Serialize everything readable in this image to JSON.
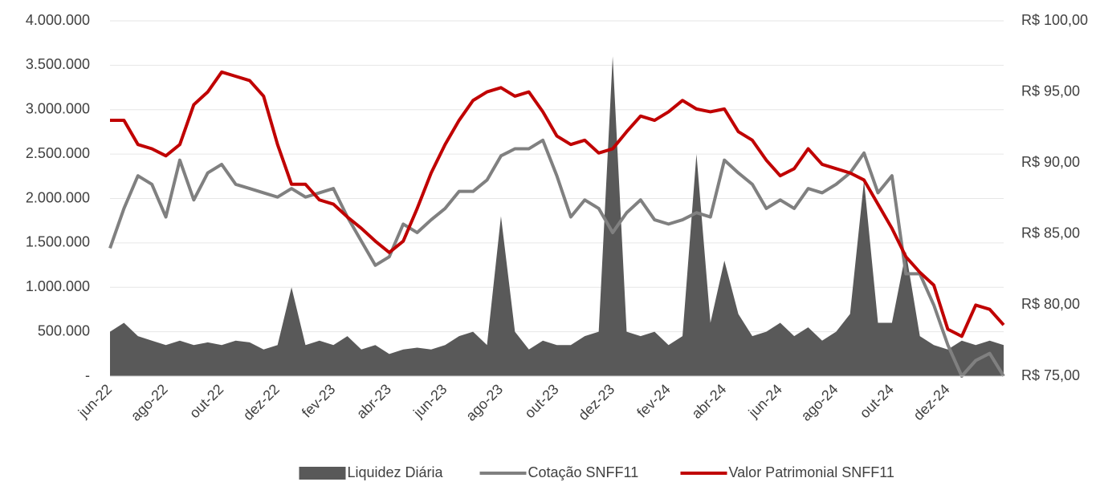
{
  "chart_data": {
    "type": "line",
    "categories": [
      "jun-22",
      null,
      null,
      null,
      "ago-22",
      null,
      null,
      null,
      "out-22",
      null,
      null,
      null,
      "dez-22",
      null,
      null,
      null,
      "fev-23",
      null,
      null,
      null,
      "abr-23",
      null,
      null,
      null,
      "jun-23",
      null,
      null,
      null,
      "ago-23",
      null,
      null,
      null,
      "out-23",
      null,
      null,
      null,
      "dez-23",
      null,
      null,
      null,
      "fev-24",
      null,
      null,
      null,
      "abr-24",
      null,
      null,
      null,
      "jun-24",
      null,
      null,
      null,
      "ago-24",
      null,
      null,
      null,
      "out-24",
      null,
      null,
      null,
      "dez-24",
      null,
      null,
      null,
      null
    ],
    "series": [
      {
        "name": "Liquidez Diária",
        "type": "area",
        "color": "#595959",
        "values": [
          500000,
          600000,
          450000,
          400000,
          350000,
          400000,
          350000,
          380000,
          350000,
          400000,
          380000,
          300000,
          350000,
          1000000,
          350000,
          400000,
          350000,
          450000,
          300000,
          350000,
          250000,
          300000,
          320000,
          300000,
          350000,
          450000,
          500000,
          350000,
          1800000,
          500000,
          300000,
          400000,
          350000,
          350000,
          450000,
          500000,
          3600000,
          500000,
          450000,
          500000,
          350000,
          450000,
          2500000,
          600000,
          1300000,
          700000,
          450000,
          500000,
          600000,
          450000,
          550000,
          400000,
          500000,
          700000,
          2200000,
          600000,
          600000,
          1400000,
          450000,
          350000,
          300000,
          400000,
          350000,
          400000,
          350000
        ]
      },
      {
        "name": "Cotação SNFF11",
        "color": "#808080",
        "axis": "y2",
        "values": [
          84.0,
          86.8,
          89.1,
          88.5,
          86.2,
          90.2,
          87.4,
          89.3,
          89.9,
          88.5,
          88.2,
          87.9,
          87.6,
          88.2,
          87.6,
          87.9,
          88.2,
          86.2,
          84.5,
          82.8,
          83.4,
          85.7,
          85.1,
          86.0,
          86.8,
          88.0,
          88.0,
          88.8,
          90.5,
          91.0,
          91.0,
          91.6,
          89.1,
          86.2,
          87.4,
          86.8,
          85.1,
          86.5,
          87.4,
          86.0,
          85.7,
          86.0,
          86.5,
          86.2,
          90.2,
          89.3,
          88.5,
          86.8,
          87.4,
          86.8,
          88.2,
          87.9,
          88.5,
          89.3,
          90.7,
          87.9,
          89.1,
          82.2,
          82.2,
          80.0,
          77.2,
          75.0,
          76.1,
          76.6,
          75.0
        ]
      },
      {
        "name": "Valor Patrimonial SNFF11",
        "color": "#c00000",
        "axis": "y2",
        "values": [
          93.0,
          93.0,
          91.3,
          91.0,
          90.5,
          91.3,
          94.1,
          95.0,
          96.4,
          96.1,
          95.8,
          94.7,
          91.3,
          88.5,
          88.5,
          87.4,
          87.1,
          86.2,
          85.4,
          84.5,
          83.7,
          84.5,
          86.8,
          89.3,
          91.3,
          93.0,
          94.4,
          95.0,
          95.3,
          94.7,
          95.0,
          93.6,
          91.9,
          91.3,
          91.6,
          90.7,
          91.0,
          92.2,
          93.3,
          93.0,
          93.6,
          94.4,
          93.8,
          93.6,
          93.8,
          92.2,
          91.6,
          90.2,
          89.1,
          89.6,
          91.0,
          89.9,
          89.6,
          89.3,
          88.8,
          87.1,
          85.4,
          83.4,
          82.3,
          81.4,
          78.3,
          77.8,
          80.0,
          79.7,
          78.6
        ]
      }
    ],
    "ylim": [
      0,
      4000000
    ],
    "yticks": [
      {
        "value": 0,
        "label": "-"
      },
      {
        "value": 500000,
        "label": "500.000"
      },
      {
        "value": 1000000,
        "label": "1.000.000"
      },
      {
        "value": 1500000,
        "label": "1.500.000"
      },
      {
        "value": 2000000,
        "label": "2.000.000"
      },
      {
        "value": 2500000,
        "label": "2.500.000"
      },
      {
        "value": 3000000,
        "label": "3.000.000"
      },
      {
        "value": 3500000,
        "label": "3.500.000"
      },
      {
        "value": 4000000,
        "label": "4.000.000"
      }
    ],
    "y2lim": [
      75,
      100
    ],
    "y2ticks": [
      {
        "value": 75,
        "label": "R$ 75,00"
      },
      {
        "value": 80,
        "label": "R$ 80,00"
      },
      {
        "value": 85,
        "label": "R$ 85,00"
      },
      {
        "value": 90,
        "label": "R$ 90,00"
      },
      {
        "value": 95,
        "label": "R$ 95,00"
      },
      {
        "value": 100,
        "label": "R$ 100,00"
      }
    ],
    "grid": true,
    "legend": "bottom"
  }
}
